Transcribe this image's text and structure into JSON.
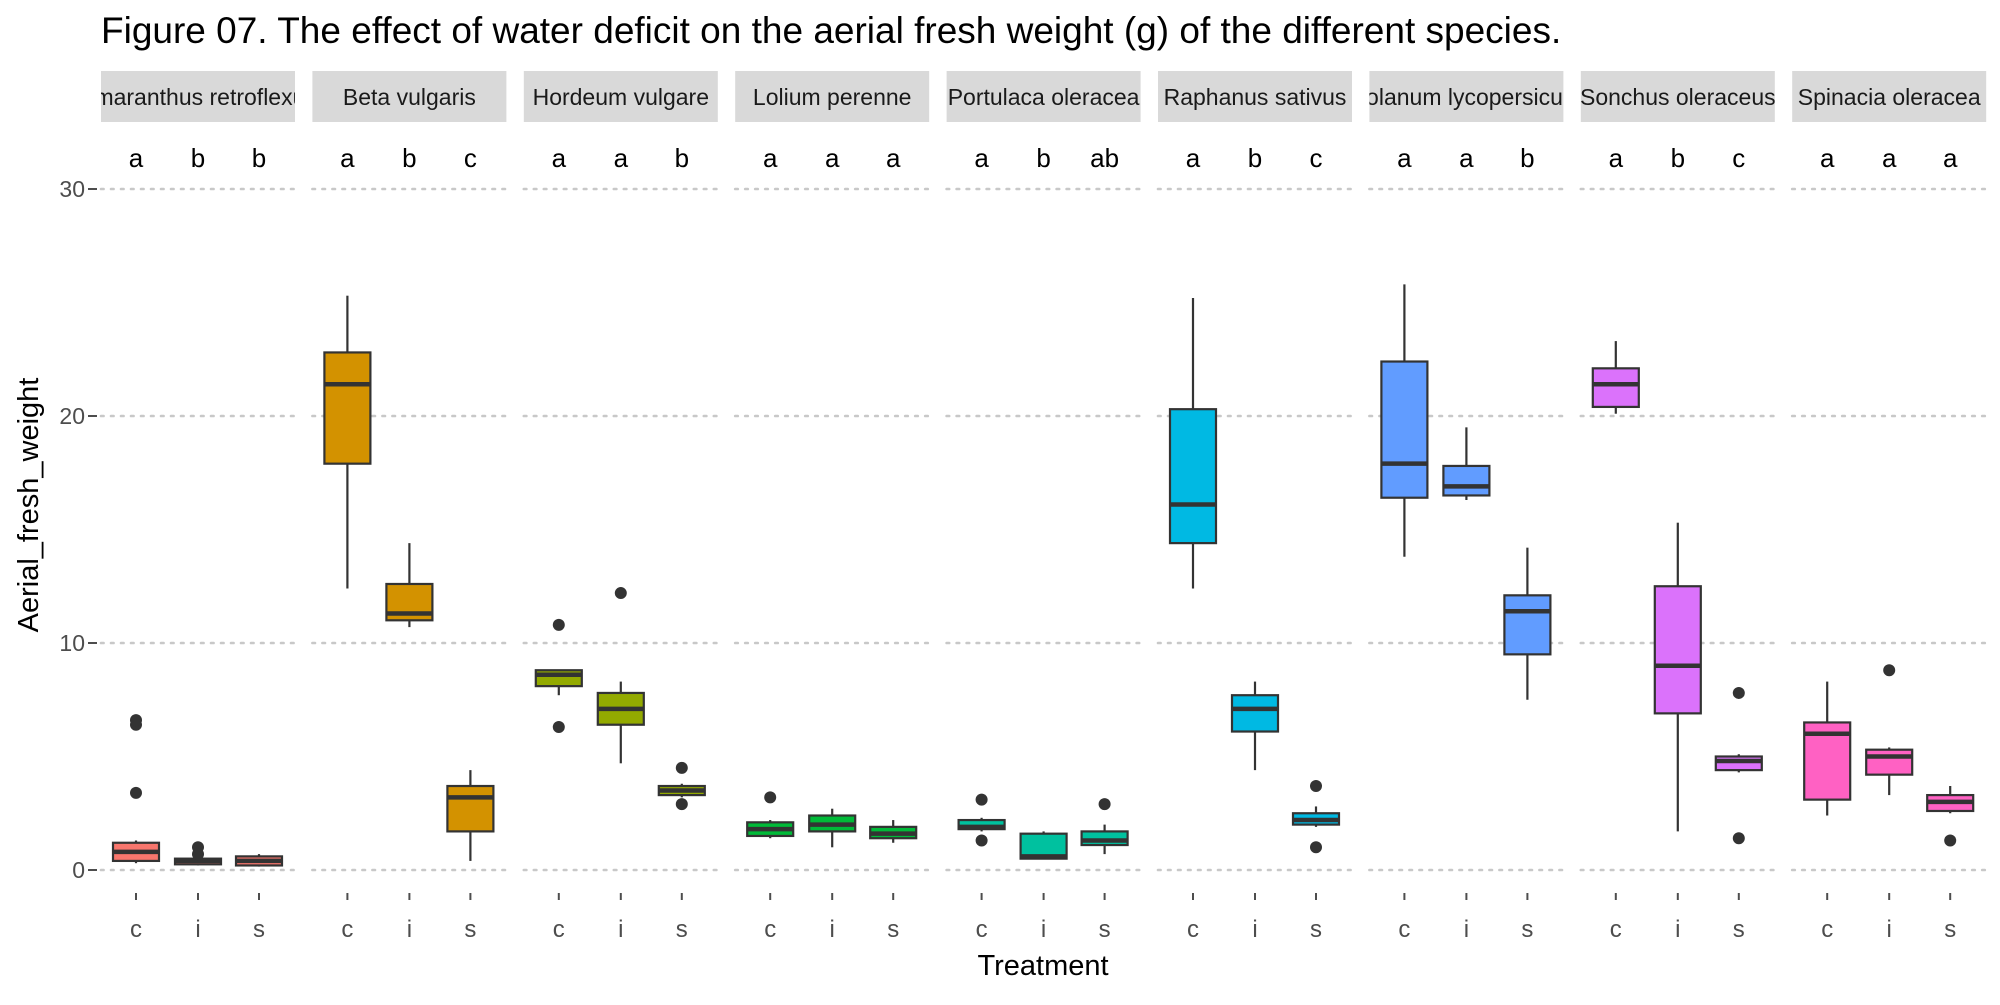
{
  "chart_data": {
    "type": "boxplot",
    "title": "Figure 07. The effect of water deficit  on the aerial fresh weight (g) of the different species.",
    "xlabel": "Treatment",
    "ylabel": "Aerial_fresh_weight",
    "ylim": [
      -1.5,
      32
    ],
    "yticks": [
      0,
      10,
      20,
      30
    ],
    "categories": [
      "c",
      "i",
      "s"
    ],
    "grid": "dotted horizontal major",
    "legend": "none",
    "panels": [
      {
        "name": "Amaranthus retroflexus",
        "color": "#F8766D",
        "letters": [
          "a",
          "b",
          "b"
        ],
        "boxes": [
          {
            "treatment": "c",
            "q1": 0.4,
            "median": 0.8,
            "q3": 1.2,
            "whisker_low": 0.3,
            "whisker_high": 1.3,
            "outliers": [
              3.4,
              6.4,
              6.6
            ]
          },
          {
            "treatment": "i",
            "q1": 0.25,
            "median": 0.4,
            "q3": 0.5,
            "whisker_low": 0.2,
            "whisker_high": 0.6,
            "outliers": [
              0.7,
              1.0
            ]
          },
          {
            "treatment": "s",
            "q1": 0.2,
            "median": 0.4,
            "q3": 0.6,
            "whisker_low": 0.15,
            "whisker_high": 0.7,
            "outliers": []
          }
        ]
      },
      {
        "name": "Beta vulgaris",
        "color": "#D39200",
        "letters": [
          "a",
          "b",
          "c"
        ],
        "boxes": [
          {
            "treatment": "c",
            "q1": 17.9,
            "median": 21.4,
            "q3": 22.8,
            "whisker_low": 12.4,
            "whisker_high": 25.3,
            "outliers": []
          },
          {
            "treatment": "i",
            "q1": 11.0,
            "median": 11.3,
            "q3": 12.6,
            "whisker_low": 10.7,
            "whisker_high": 14.4,
            "outliers": []
          },
          {
            "treatment": "s",
            "q1": 1.7,
            "median": 3.2,
            "q3": 3.7,
            "whisker_low": 0.4,
            "whisker_high": 4.4,
            "outliers": []
          }
        ]
      },
      {
        "name": "Hordeum vulgare",
        "color": "#93AA00",
        "letters": [
          "a",
          "a",
          "b"
        ],
        "boxes": [
          {
            "treatment": "c",
            "q1": 8.1,
            "median": 8.6,
            "q3": 8.8,
            "whisker_low": 7.7,
            "whisker_high": 8.8,
            "outliers": [
              6.3,
              10.8
            ]
          },
          {
            "treatment": "i",
            "q1": 6.4,
            "median": 7.1,
            "q3": 7.8,
            "whisker_low": 4.7,
            "whisker_high": 8.3,
            "outliers": [
              12.2
            ]
          },
          {
            "treatment": "s",
            "q1": 3.3,
            "median": 3.5,
            "q3": 3.7,
            "whisker_low": 3.2,
            "whisker_high": 3.8,
            "outliers": [
              2.9,
              4.5
            ]
          }
        ]
      },
      {
        "name": "Lolium perenne",
        "color": "#00BA38",
        "letters": [
          "a",
          "a",
          "a"
        ],
        "boxes": [
          {
            "treatment": "c",
            "q1": 1.5,
            "median": 1.8,
            "q3": 2.1,
            "whisker_low": 1.4,
            "whisker_high": 2.2,
            "outliers": [
              3.2
            ]
          },
          {
            "treatment": "i",
            "q1": 1.7,
            "median": 2.0,
            "q3": 2.4,
            "whisker_low": 1.0,
            "whisker_high": 2.7,
            "outliers": []
          },
          {
            "treatment": "s",
            "q1": 1.4,
            "median": 1.6,
            "q3": 1.9,
            "whisker_low": 1.2,
            "whisker_high": 2.2,
            "outliers": []
          }
        ]
      },
      {
        "name": "Portulaca oleracea",
        "color": "#00C19F",
        "letters": [
          "a",
          "b",
          "ab"
        ],
        "boxes": [
          {
            "treatment": "c",
            "q1": 1.8,
            "median": 1.9,
            "q3": 2.2,
            "whisker_low": 1.7,
            "whisker_high": 2.3,
            "outliers": [
              1.3,
              3.1
            ]
          },
          {
            "treatment": "i",
            "q1": 0.5,
            "median": 0.6,
            "q3": 1.6,
            "whisker_low": 0.5,
            "whisker_high": 1.7,
            "outliers": []
          },
          {
            "treatment": "s",
            "q1": 1.1,
            "median": 1.3,
            "q3": 1.7,
            "whisker_low": 0.7,
            "whisker_high": 2.0,
            "outliers": [
              2.9
            ]
          }
        ]
      },
      {
        "name": "Raphanus sativus",
        "color": "#00B9E3",
        "letters": [
          "a",
          "b",
          "c"
        ],
        "boxes": [
          {
            "treatment": "c",
            "q1": 14.4,
            "median": 16.1,
            "q3": 20.3,
            "whisker_low": 12.4,
            "whisker_high": 25.2,
            "outliers": []
          },
          {
            "treatment": "i",
            "q1": 6.1,
            "median": 7.1,
            "q3": 7.7,
            "whisker_low": 4.4,
            "whisker_high": 8.3,
            "outliers": []
          },
          {
            "treatment": "s",
            "q1": 2.0,
            "median": 2.2,
            "q3": 2.5,
            "whisker_low": 1.9,
            "whisker_high": 2.8,
            "outliers": [
              1.0,
              3.7
            ]
          }
        ]
      },
      {
        "name": "Solanum lycopersicum",
        "color": "#619CFF",
        "letters": [
          "a",
          "a",
          "b"
        ],
        "boxes": [
          {
            "treatment": "c",
            "q1": 16.4,
            "median": 17.9,
            "q3": 22.4,
            "whisker_low": 13.8,
            "whisker_high": 25.8,
            "outliers": []
          },
          {
            "treatment": "i",
            "q1": 16.5,
            "median": 16.9,
            "q3": 17.8,
            "whisker_low": 16.3,
            "whisker_high": 19.5,
            "outliers": []
          },
          {
            "treatment": "s",
            "q1": 9.5,
            "median": 11.4,
            "q3": 12.1,
            "whisker_low": 7.5,
            "whisker_high": 14.2,
            "outliers": []
          }
        ]
      },
      {
        "name": "Sonchus oleraceus",
        "color": "#DB72FB",
        "letters": [
          "a",
          "b",
          "c"
        ],
        "boxes": [
          {
            "treatment": "c",
            "q1": 20.4,
            "median": 21.4,
            "q3": 22.1,
            "whisker_low": 20.1,
            "whisker_high": 23.3,
            "outliers": []
          },
          {
            "treatment": "i",
            "q1": 6.9,
            "median": 9.0,
            "q3": 12.5,
            "whisker_low": 1.7,
            "whisker_high": 15.3,
            "outliers": []
          },
          {
            "treatment": "s",
            "q1": 4.4,
            "median": 4.8,
            "q3": 5.0,
            "whisker_low": 4.3,
            "whisker_high": 5.1,
            "outliers": [
              1.4,
              7.8
            ]
          }
        ]
      },
      {
        "name": "Spinacia oleracea",
        "color": "#FF61C3",
        "letters": [
          "a",
          "a",
          "a"
        ],
        "boxes": [
          {
            "treatment": "c",
            "q1": 3.1,
            "median": 6.0,
            "q3": 6.5,
            "whisker_low": 2.4,
            "whisker_high": 8.3,
            "outliers": []
          },
          {
            "treatment": "i",
            "q1": 4.2,
            "median": 5.0,
            "q3": 5.3,
            "whisker_low": 3.3,
            "whisker_high": 5.4,
            "outliers": [
              8.8
            ]
          },
          {
            "treatment": "s",
            "q1": 2.6,
            "median": 3.0,
            "q3": 3.3,
            "whisker_low": 2.5,
            "whisker_high": 3.7,
            "outliers": [
              1.3
            ]
          }
        ]
      }
    ]
  }
}
